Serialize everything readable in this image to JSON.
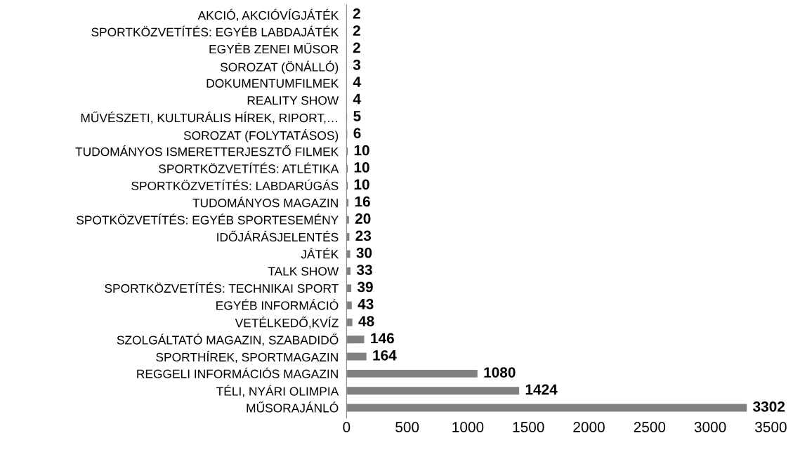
{
  "chart_data": {
    "type": "bar",
    "orientation": "horizontal",
    "categories": [
      "AKCIÓ, AKCIÓVÍGJÁTÉK",
      "SPORTKÖZVETÍTÉS: EGYÉB LABDAJÁTÉK",
      "EGYÉB ZENEI MŰSOR",
      "SOROZAT (ÖNÁLLÓ)",
      "DOKUMENTUMFILMEK",
      "REALITY SHOW",
      "MŰVÉSZETI, KULTURÁLIS HÍREK, RIPORT,…",
      "SOROZAT (FOLYTATÁSOS)",
      "TUDOMÁNYOS ISMERETTERJESZTŐ FILMEK",
      "SPORTKÖZVETÍTÉS: ATLÉTIKA",
      "SPORTKÖZVETÍTÉS: LABDARÚGÁS",
      "TUDOMÁNYOS MAGAZIN",
      "SPOTKÖZVETÍTÉS: EGYÉB SPORTESEMÉNY",
      "IDŐJÁRÁSJELENTÉS",
      "JÁTÉK",
      "TALK SHOW",
      "SPORTKÖZVETÍTÉS: TECHNIKAI SPORT",
      "EGYÉB INFORMÁCIÓ",
      "VETÉLKEDŐ,KVÍZ",
      "SZOLGÁLTATÓ MAGAZIN, SZABADIDŐ",
      "SPORTHÍREK, SPORTMAGAZIN",
      "REGGELI INFORMÁCIÓS MAGAZIN",
      "TÉLI, NYÁRI OLIMPIA",
      "MŰSORAJÁNLÓ"
    ],
    "values": [
      2,
      2,
      2,
      3,
      4,
      4,
      5,
      6,
      10,
      10,
      10,
      16,
      20,
      23,
      30,
      33,
      39,
      43,
      48,
      146,
      164,
      1080,
      1424,
      3302
    ],
    "color": "#808080",
    "data_labels": true,
    "xlim": [
      0,
      3500
    ],
    "xticks": [
      0,
      500,
      1000,
      1500,
      2000,
      2500,
      3000,
      3500
    ],
    "grid": false,
    "legend": false
  }
}
